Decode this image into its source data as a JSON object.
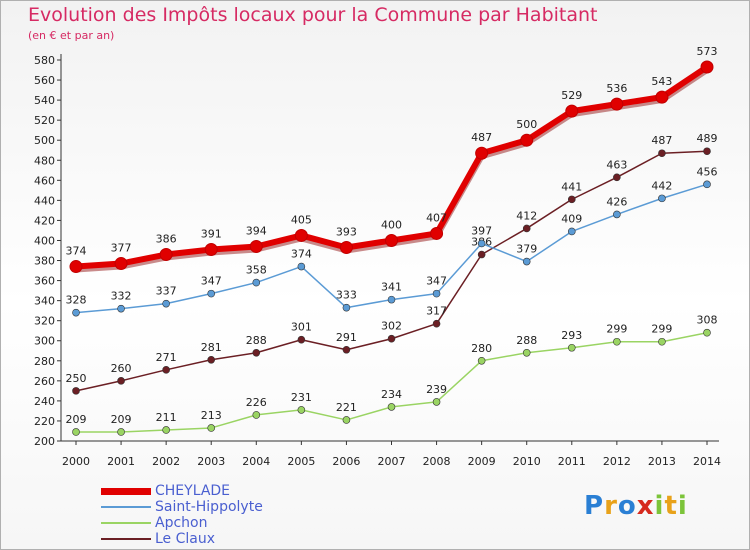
{
  "title": "Evolution des Impôts locaux pour la Commune par Habitant",
  "subtitle": "(en € et par an)",
  "logo": {
    "text": "Proxiti",
    "letters": [
      {
        "ch": "P",
        "color": "#2a7fd4"
      },
      {
        "ch": "r",
        "color": "#e8a21a"
      },
      {
        "ch": "o",
        "color": "#2a7fd4"
      },
      {
        "ch": "x",
        "color": "#d62a1e"
      },
      {
        "ch": "i",
        "color": "#7cc43a"
      },
      {
        "ch": "t",
        "color": "#e8a21a"
      },
      {
        "ch": "i",
        "color": "#7cc43a"
      }
    ]
  },
  "chart_data": {
    "type": "line",
    "x": [
      "2000",
      "2001",
      "2002",
      "2003",
      "2004",
      "2005",
      "2006",
      "2007",
      "2008",
      "2009",
      "2010",
      "2011",
      "2012",
      "2013",
      "2014"
    ],
    "ylim": [
      200,
      580
    ],
    "yticks": [
      200,
      220,
      240,
      260,
      280,
      300,
      320,
      340,
      360,
      380,
      400,
      420,
      440,
      460,
      480,
      500,
      520,
      540,
      560,
      580
    ],
    "grid": false,
    "legend": "bottom-left",
    "series": [
      {
        "name": "CHEYLADE",
        "color": "#e00000",
        "width": 6,
        "marker": 6,
        "values": [
          374,
          377,
          386,
          391,
          394,
          405,
          393,
          400,
          407,
          487,
          500,
          529,
          536,
          543,
          573
        ],
        "labels": [
          "374",
          "377",
          "386",
          "391",
          "394",
          "405",
          "393",
          "400",
          "407",
          "487",
          "500",
          "529",
          "536",
          "543",
          "573"
        ]
      },
      {
        "name": "Saint-Hippolyte",
        "color": "#5b9bd5",
        "width": 1.5,
        "marker": 3.5,
        "values": [
          328,
          332,
          337,
          347,
          358,
          374,
          333,
          341,
          347,
          397,
          379,
          409,
          426,
          442,
          456
        ],
        "labels": [
          "328",
          "332",
          "337",
          "347",
          "358",
          "374",
          "333",
          "341",
          "347",
          "397",
          "379",
          "409",
          "426",
          "442",
          "456"
        ]
      },
      {
        "name": "Apchon",
        "color": "#9ad463",
        "width": 1.5,
        "marker": 3.5,
        "values": [
          209,
          209,
          211,
          213,
          226,
          231,
          221,
          234,
          239,
          280,
          288,
          293,
          299,
          299,
          308
        ],
        "labels": [
          "209",
          "209",
          "211",
          "213",
          "226",
          "231",
          "221",
          "234",
          "239",
          "280",
          "288",
          "293",
          "299",
          "299",
          "308"
        ]
      },
      {
        "name": "Le Claux",
        "color": "#6b1f24",
        "width": 1.5,
        "marker": 3.5,
        "values": [
          250,
          260,
          271,
          281,
          288,
          301,
          291,
          302,
          317,
          386,
          412,
          441,
          463,
          487,
          489
        ],
        "labels": [
          "250",
          "260",
          "271",
          "281",
          "288",
          "301",
          "291",
          "302",
          "317",
          "386",
          "412",
          "441",
          "463",
          "487",
          "489"
        ]
      }
    ]
  }
}
